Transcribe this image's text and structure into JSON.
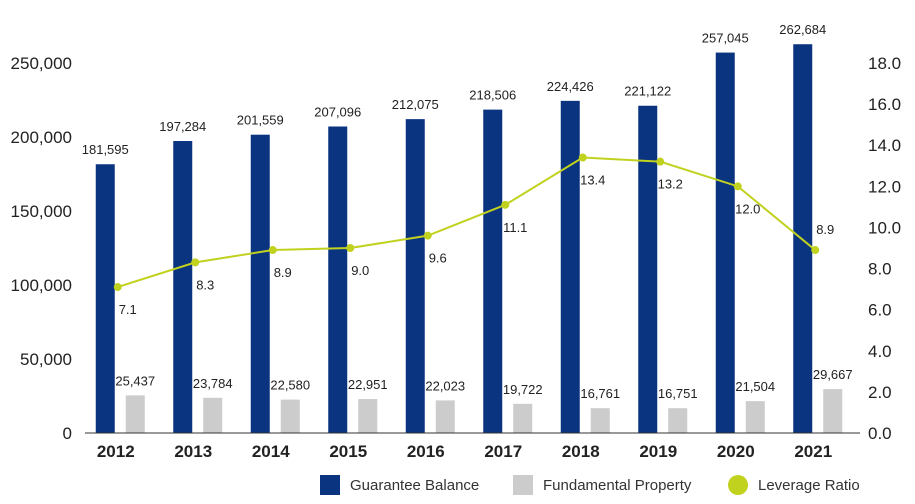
{
  "chart_data": {
    "type": "bar",
    "categories": [
      "2012",
      "2013",
      "2014",
      "2015",
      "2016",
      "2017",
      "2018",
      "2019",
      "2020",
      "2021"
    ],
    "series": [
      {
        "name": "Guarantee Balance",
        "type": "bar",
        "axis": "left",
        "color": "#0a3380",
        "values": [
          181595,
          197284,
          201559,
          207096,
          212075,
          218506,
          224426,
          221122,
          257045,
          262684
        ],
        "labels": [
          "181,595",
          "197,284",
          "201,559",
          "207,096",
          "212,075",
          "218,506",
          "224,426",
          "221,122",
          "257,045",
          "262,684"
        ]
      },
      {
        "name": "Fundamental Property",
        "type": "bar",
        "axis": "left",
        "color": "#cccccc",
        "values": [
          25437,
          23784,
          22580,
          22951,
          22023,
          19722,
          16761,
          16751,
          21504,
          29667
        ],
        "labels": [
          "25,437",
          "23,784",
          "22,580",
          "22,951",
          "22,023",
          "19,722",
          "16,761",
          "16,751",
          "21,504",
          "29,667"
        ]
      },
      {
        "name": "Leverage Ratio",
        "type": "line",
        "axis": "right",
        "color": "#c0d21e",
        "values": [
          7.1,
          8.3,
          8.9,
          9.0,
          9.6,
          11.1,
          13.4,
          13.2,
          12.0,
          8.9
        ],
        "labels": [
          "7.1",
          "8.3",
          "8.9",
          "9.0",
          "9.6",
          "11.1",
          "13.4",
          "13.2",
          "12.0",
          "8.9"
        ]
      }
    ],
    "y_left": {
      "lim": [
        0,
        250000
      ],
      "ticks": [
        0,
        50000,
        100000,
        150000,
        200000,
        250000
      ],
      "tick_labels": [
        "0",
        "50,000",
        "100,000",
        "150,000",
        "200,000",
        "250,000"
      ]
    },
    "y_right": {
      "lim": [
        0,
        18
      ],
      "ticks": [
        0,
        2,
        4,
        6,
        8,
        10,
        12,
        14,
        16,
        18
      ],
      "tick_labels": [
        "0.0",
        "2.0",
        "4.0",
        "6.0",
        "8.0",
        "10.0",
        "12.0",
        "14.0",
        "16.0",
        "18.0"
      ]
    },
    "grid": false,
    "legend_position": "bottom-right",
    "title": "",
    "xlabel": "",
    "ylabel": ""
  }
}
